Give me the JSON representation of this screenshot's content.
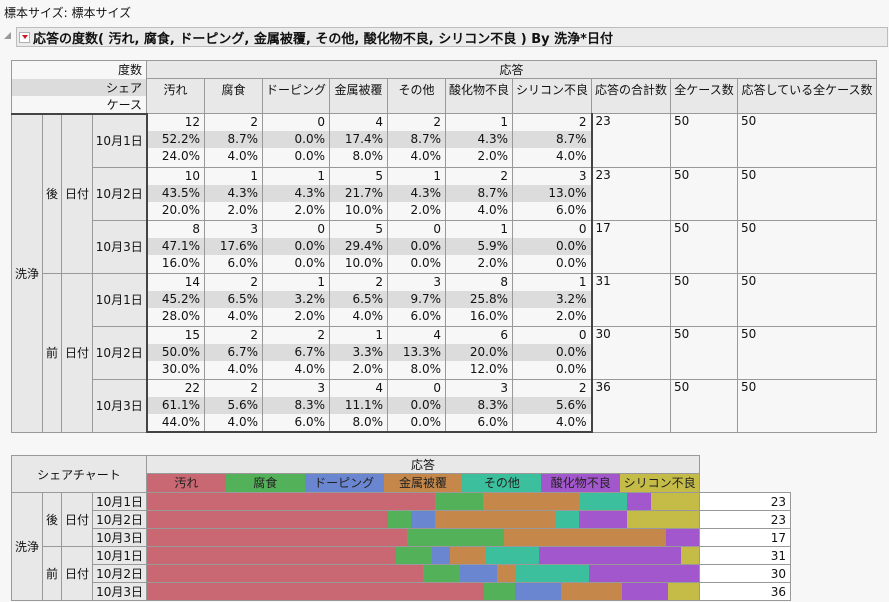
{
  "sample_size_label": "標本サイズ: 標本サイズ",
  "report": {
    "title": "応答の度数( 汚れ, 腐食, ドーピング, 金属被覆, その他, 酸化物不良, シリコン不良 ) By 洗浄*日付"
  },
  "table": {
    "stat_labels": [
      "度数",
      "シェア",
      "ケース"
    ],
    "response_header": "応答",
    "columns": [
      "汚れ",
      "腐食",
      "ドーピング",
      "金属被覆",
      "その他",
      "酸化物不良",
      "シリコン不良"
    ],
    "total_columns": [
      "応答の合計数",
      "全ケース数",
      "応答している全ケース数"
    ],
    "outer_group": "洗浄",
    "date_label": "日付",
    "groups": [
      {
        "label": "後",
        "rows": [
          {
            "date": "10月1日",
            "counts": [
              "12",
              "2",
              "0",
              "4",
              "2",
              "1",
              "2"
            ],
            "shares": [
              "52.2%",
              "8.7%",
              "0.0%",
              "17.4%",
              "8.7%",
              "4.3%",
              "8.7%"
            ],
            "cases": [
              "24.0%",
              "4.0%",
              "0.0%",
              "8.0%",
              "4.0%",
              "2.0%",
              "4.0%"
            ],
            "total_responses": "23",
            "total_cases": "50",
            "responding_cases": "50"
          },
          {
            "date": "10月2日",
            "counts": [
              "10",
              "1",
              "1",
              "5",
              "1",
              "2",
              "3"
            ],
            "shares": [
              "43.5%",
              "4.3%",
              "4.3%",
              "21.7%",
              "4.3%",
              "8.7%",
              "13.0%"
            ],
            "cases": [
              "20.0%",
              "2.0%",
              "2.0%",
              "10.0%",
              "2.0%",
              "4.0%",
              "6.0%"
            ],
            "total_responses": "23",
            "total_cases": "50",
            "responding_cases": "50"
          },
          {
            "date": "10月3日",
            "counts": [
              "8",
              "3",
              "0",
              "5",
              "0",
              "1",
              "0"
            ],
            "shares": [
              "47.1%",
              "17.6%",
              "0.0%",
              "29.4%",
              "0.0%",
              "5.9%",
              "0.0%"
            ],
            "cases": [
              "16.0%",
              "6.0%",
              "0.0%",
              "10.0%",
              "0.0%",
              "2.0%",
              "0.0%"
            ],
            "total_responses": "17",
            "total_cases": "50",
            "responding_cases": "50"
          }
        ]
      },
      {
        "label": "前",
        "rows": [
          {
            "date": "10月1日",
            "counts": [
              "14",
              "2",
              "1",
              "2",
              "3",
              "8",
              "1"
            ],
            "shares": [
              "45.2%",
              "6.5%",
              "3.2%",
              "6.5%",
              "9.7%",
              "25.8%",
              "3.2%"
            ],
            "cases": [
              "28.0%",
              "4.0%",
              "2.0%",
              "4.0%",
              "6.0%",
              "16.0%",
              "2.0%"
            ],
            "total_responses": "31",
            "total_cases": "50",
            "responding_cases": "50"
          },
          {
            "date": "10月2日",
            "counts": [
              "15",
              "2",
              "2",
              "1",
              "4",
              "6",
              "0"
            ],
            "shares": [
              "50.0%",
              "6.7%",
              "6.7%",
              "3.3%",
              "13.3%",
              "20.0%",
              "0.0%"
            ],
            "cases": [
              "30.0%",
              "4.0%",
              "4.0%",
              "2.0%",
              "8.0%",
              "12.0%",
              "0.0%"
            ],
            "total_responses": "30",
            "total_cases": "50",
            "responding_cases": "50"
          },
          {
            "date": "10月3日",
            "counts": [
              "22",
              "2",
              "3",
              "4",
              "0",
              "3",
              "2"
            ],
            "shares": [
              "61.1%",
              "5.6%",
              "8.3%",
              "11.1%",
              "0.0%",
              "8.3%",
              "5.6%"
            ],
            "cases": [
              "44.0%",
              "4.0%",
              "6.0%",
              "8.0%",
              "0.0%",
              "6.0%",
              "4.0%"
            ],
            "total_responses": "36",
            "total_cases": "50",
            "responding_cases": "50"
          }
        ]
      }
    ]
  },
  "share_chart": {
    "title": "シェアチャート",
    "response_header": "応答",
    "legend": [
      {
        "label": "汚れ",
        "color": "#c96872"
      },
      {
        "label": "腐食",
        "color": "#53b159"
      },
      {
        "label": "ドーピング",
        "color": "#6a86d1"
      },
      {
        "label": "金属被覆",
        "color": "#c5884a"
      },
      {
        "label": "その他",
        "color": "#3cbf9c"
      },
      {
        "label": "酸化物不良",
        "color": "#a357cc"
      },
      {
        "label": "シリコン不良",
        "color": "#c5bc48"
      }
    ],
    "outer_group": "洗浄",
    "date_label": "日付",
    "groups": [
      {
        "label": "後",
        "rows": [
          {
            "date": "10月1日",
            "n": "23"
          },
          {
            "date": "10月2日",
            "n": "23"
          },
          {
            "date": "10月3日",
            "n": "17"
          }
        ]
      },
      {
        "label": "前",
        "rows": [
          {
            "date": "10月1日",
            "n": "31"
          },
          {
            "date": "10月2日",
            "n": "30"
          },
          {
            "date": "10月3日",
            "n": "36"
          }
        ]
      }
    ]
  },
  "chart_data": {
    "type": "bar",
    "title": "シェアチャート",
    "stacked": true,
    "orientation": "horizontal",
    "categories": [
      "後 10月1日",
      "後 10月2日",
      "後 10月3日",
      "前 10月1日",
      "前 10月2日",
      "前 10月3日"
    ],
    "series": [
      {
        "name": "汚れ",
        "values": [
          52.2,
          43.5,
          47.1,
          45.2,
          50.0,
          61.1
        ]
      },
      {
        "name": "腐食",
        "values": [
          8.7,
          4.3,
          17.6,
          6.5,
          6.7,
          5.6
        ]
      },
      {
        "name": "ドーピング",
        "values": [
          0.0,
          4.3,
          0.0,
          3.2,
          6.7,
          8.3
        ]
      },
      {
        "name": "金属被覆",
        "values": [
          17.4,
          21.7,
          29.4,
          6.5,
          3.3,
          11.1
        ]
      },
      {
        "name": "その他",
        "values": [
          8.7,
          4.3,
          0.0,
          9.7,
          13.3,
          0.0
        ]
      },
      {
        "name": "酸化物不良",
        "values": [
          4.3,
          8.7,
          5.9,
          25.8,
          20.0,
          8.3
        ]
      },
      {
        "name": "シリコン不良",
        "values": [
          8.7,
          13.0,
          0.0,
          3.2,
          0.0,
          5.6
        ]
      }
    ],
    "row_totals": [
      23,
      23,
      17,
      31,
      30,
      36
    ],
    "xlabel": "応答",
    "ylabel": "洗浄 / 日付",
    "xlim": [
      0,
      100
    ]
  }
}
